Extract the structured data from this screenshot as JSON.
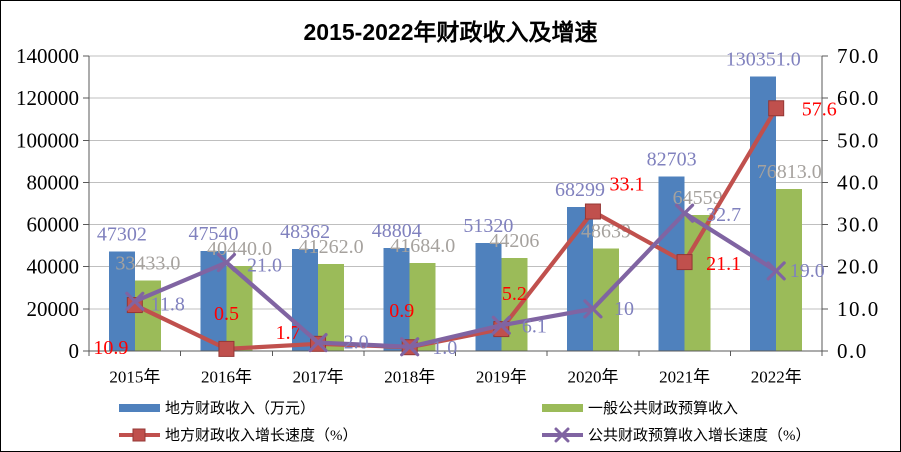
{
  "chart_data": {
    "type": "bar",
    "subtype": "bar-line-combo",
    "title": "2015-2022年财政收入及增速",
    "categories": [
      "2015年",
      "2016年",
      "2017年",
      "2018年",
      "2019年",
      "2020年",
      "2021年",
      "2022年"
    ],
    "series": [
      {
        "name": "地方财政收入（万元）",
        "kind": "bar",
        "axis": "left",
        "color": "#4F81BD",
        "values": [
          47302,
          47540,
          48362,
          48804,
          51320,
          68299,
          82703,
          130351
        ],
        "labels": [
          "47302",
          "47540",
          "48362",
          "48804",
          "51320",
          "68299",
          "82703",
          "130351.0"
        ],
        "label_color": "#8081BE"
      },
      {
        "name": "一般公共财政预算收入",
        "kind": "bar",
        "axis": "left",
        "color": "#9BBB59",
        "values": [
          33433,
          40440,
          41262,
          41684,
          44206,
          48639,
          64559,
          76813
        ],
        "labels": [
          "33433.0",
          "40440.0",
          "41262.0",
          "41684.0",
          "44206",
          "48639",
          "64559",
          "76813.0"
        ],
        "label_color": "#A6A29E"
      },
      {
        "name": "地方财政收入增长速度（%）",
        "kind": "line",
        "axis": "right",
        "color": "#C0504D",
        "marker": "square",
        "values": [
          10.9,
          0.5,
          1.7,
          0.9,
          5.2,
          33.1,
          21.1,
          57.6
        ],
        "labels": [
          "10.9",
          "0.5",
          "1.7",
          "0.9",
          "5.2",
          "33.1",
          "21.1",
          "57.6"
        ],
        "label_color": "#FF0000"
      },
      {
        "name": "公共财政预算收入增长速度（%）",
        "kind": "line",
        "axis": "right",
        "color": "#8064A2",
        "marker": "x",
        "values": [
          11.8,
          21.0,
          2.0,
          1.0,
          6.1,
          10,
          32.7,
          19.0
        ],
        "labels": [
          "11.8",
          "21.0",
          "2.0",
          "1.0",
          "6.1",
          "10",
          "32.7",
          "19.0"
        ],
        "label_color": "#8081BE"
      }
    ],
    "left_axis": {
      "min": 0,
      "max": 140000,
      "step": 20000,
      "ticks": [
        "0",
        "20000",
        "40000",
        "60000",
        "80000",
        "100000",
        "120000",
        "140000"
      ]
    },
    "right_axis": {
      "min": 0,
      "max": 70,
      "step": 10,
      "ticks": [
        "0.0",
        "10.0",
        "20.0",
        "30.0",
        "40.0",
        "50.0",
        "60.0",
        "70.0"
      ]
    },
    "grid": true,
    "legend_position": "bottom"
  }
}
